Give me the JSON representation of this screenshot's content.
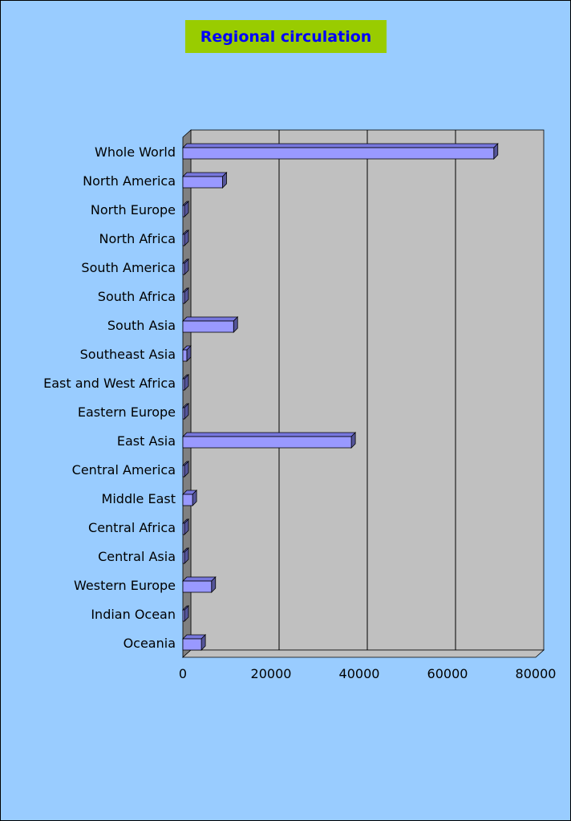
{
  "colors": {
    "background": "#99ccff",
    "plot_area": "#c0c0c0",
    "title_background": "#99cc00",
    "title_text": "#0000ff",
    "bar_front": "#9999ff",
    "bar_top": "#7777dd",
    "bar_side": "#555599",
    "floor_wall": "#808080",
    "text": "#000000"
  },
  "chart_data": {
    "type": "bar",
    "orientation": "horizontal",
    "three_d": true,
    "title": "Regional circulation",
    "xlabel": "",
    "ylabel": "",
    "xlim": [
      0,
      80000
    ],
    "x_ticks": [
      0,
      20000,
      40000,
      60000,
      80000
    ],
    "x_tick_labels": [
      "0",
      "20000",
      "40000",
      "60000",
      "80000"
    ],
    "grid": true,
    "legend": "none",
    "categories": [
      "Whole World",
      "North America",
      "North Europe",
      "North Africa",
      "South America",
      "South Africa",
      "South Asia",
      "Southeast Asia",
      "East and West Africa",
      "Eastern Europe",
      "East Asia",
      "Central America",
      "Middle East",
      "Central Africa",
      "Central Asia",
      "Western Europe",
      "Indian Ocean",
      "Oceania"
    ],
    "values": [
      70500,
      9000,
      150,
      150,
      100,
      150,
      11500,
      900,
      150,
      150,
      38200,
      80,
      2200,
      100,
      80,
      6500,
      100,
      4200
    ]
  }
}
